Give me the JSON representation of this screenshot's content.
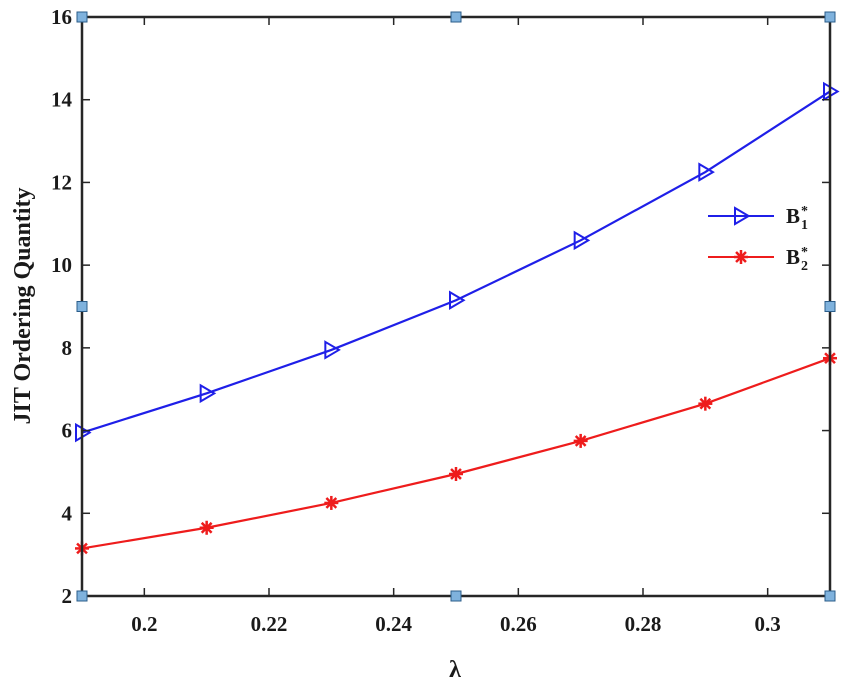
{
  "chart_data": {
    "type": "line",
    "title": "",
    "xlabel": "λ",
    "ylabel": "JIT Ordering Quantity",
    "xlim": [
      0.19,
      0.31
    ],
    "ylim": [
      2,
      16
    ],
    "xticks": [
      0.2,
      0.22,
      0.24,
      0.26,
      0.28,
      0.3
    ],
    "xtick_labels": [
      "0.2",
      "0.22",
      "0.24",
      "0.26",
      "0.28",
      "0.3"
    ],
    "yticks": [
      2,
      4,
      6,
      8,
      10,
      12,
      14,
      16
    ],
    "ytick_labels": [
      "2",
      "4",
      "6",
      "8",
      "10",
      "12",
      "14",
      "16"
    ],
    "grid": false,
    "legend_position": "right",
    "x": [
      0.19,
      0.21,
      0.23,
      0.25,
      0.27,
      0.29,
      0.31
    ],
    "series": [
      {
        "name_base": "B",
        "name_sub": "1",
        "name_sup": "*",
        "color": "#1f1fe8",
        "marker": "triangle-right",
        "values": [
          5.95,
          6.9,
          7.95,
          9.15,
          10.6,
          12.25,
          14.2
        ]
      },
      {
        "name_base": "B",
        "name_sub": "2",
        "name_sup": "*",
        "color": "#ee1c1c",
        "marker": "asterisk",
        "values": [
          3.15,
          3.65,
          4.25,
          4.95,
          5.75,
          6.65,
          7.75
        ]
      }
    ],
    "corner_handles": [
      {
        "x": 0.19,
        "y": 16
      },
      {
        "x": 0.25,
        "y": 16
      },
      {
        "x": 0.31,
        "y": 16
      },
      {
        "x": 0.19,
        "y": 9
      },
      {
        "x": 0.31,
        "y": 9
      },
      {
        "x": 0.19,
        "y": 2
      },
      {
        "x": 0.25,
        "y": 2
      },
      {
        "x": 0.31,
        "y": 2
      }
    ],
    "handle_color": "#7fb2dd"
  }
}
